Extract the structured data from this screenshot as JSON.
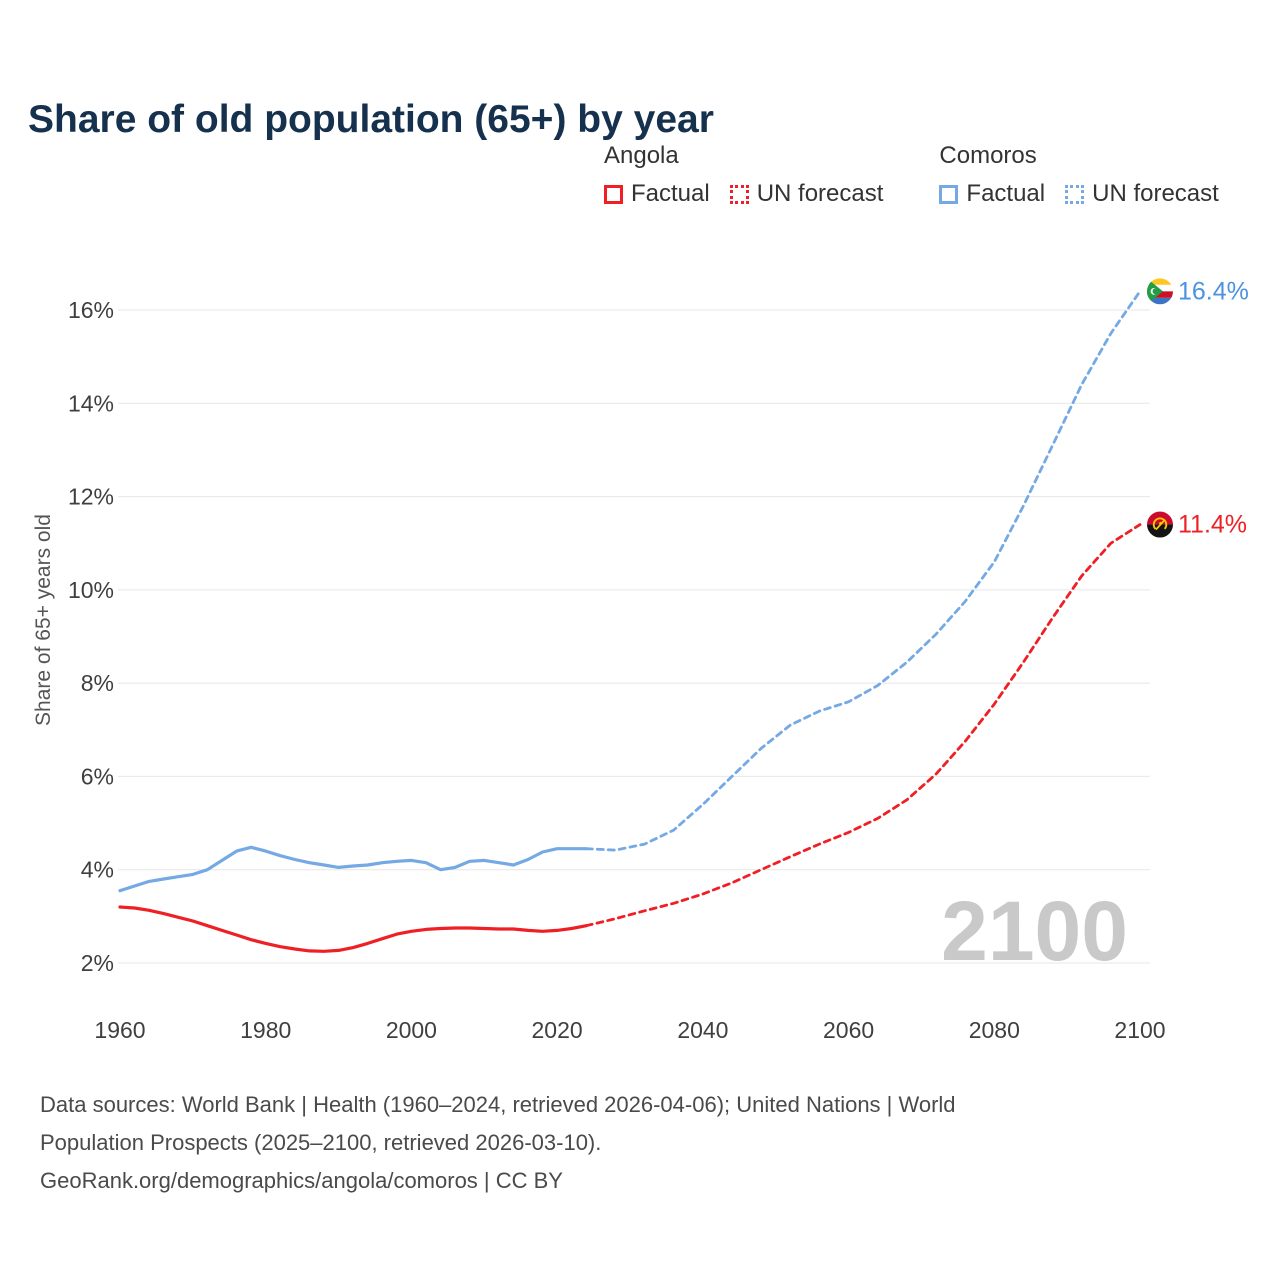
{
  "title": "Share of old population (65+) by year",
  "legend": {
    "groups": [
      {
        "name": "Angola",
        "color": "#ee2025",
        "items": [
          {
            "label": "Factual",
            "style": "solid"
          },
          {
            "label": "UN forecast",
            "style": "dotted"
          }
        ]
      },
      {
        "name": "Comoros",
        "color": "#74a9e4",
        "items": [
          {
            "label": "Factual",
            "style": "solid"
          },
          {
            "label": "UN forecast",
            "style": "dotted"
          }
        ]
      }
    ]
  },
  "footer": {
    "lines": [
      "Data sources: World Bank | Health (1960–2024, retrieved 2026-04-06); United Nations | World",
      "Population Prospects (2025–2100, retrieved 2026-03-10).",
      "GeoRank.org/demographics/angola/comoros | CC BY"
    ]
  },
  "chart_data": {
    "type": "line",
    "title": "Share of old population (65+) by year",
    "xlabel": "",
    "ylabel": "Share of 65+ years old",
    "xlim": [
      1960,
      2100
    ],
    "ylim": [
      2,
      16
    ],
    "xticks": [
      1960,
      1980,
      2000,
      2020,
      2040,
      2060,
      2080,
      2100
    ],
    "yticks": [
      2,
      4,
      6,
      8,
      10,
      12,
      14,
      16
    ],
    "grid": "horizontal",
    "legend_position": "top-right",
    "watermark": "2100",
    "series": [
      {
        "name": "Angola Factual",
        "color": "#ee2025",
        "style": "solid",
        "x": [
          1960,
          1962,
          1964,
          1966,
          1968,
          1970,
          1972,
          1974,
          1976,
          1978,
          1980,
          1982,
          1984,
          1986,
          1988,
          1990,
          1992,
          1994,
          1996,
          1998,
          2000,
          2002,
          2004,
          2006,
          2008,
          2010,
          2012,
          2014,
          2016,
          2018,
          2020,
          2022,
          2024
        ],
        "y": [
          3.2,
          3.18,
          3.13,
          3.06,
          2.98,
          2.9,
          2.8,
          2.7,
          2.6,
          2.5,
          2.42,
          2.35,
          2.3,
          2.26,
          2.25,
          2.27,
          2.33,
          2.42,
          2.52,
          2.62,
          2.68,
          2.72,
          2.74,
          2.75,
          2.75,
          2.74,
          2.73,
          2.73,
          2.7,
          2.68,
          2.7,
          2.74,
          2.8
        ]
      },
      {
        "name": "Angola UN forecast",
        "color": "#ee2025",
        "style": "dashed",
        "x": [
          2024,
          2028,
          2032,
          2036,
          2040,
          2044,
          2048,
          2052,
          2056,
          2060,
          2064,
          2068,
          2072,
          2076,
          2080,
          2084,
          2088,
          2092,
          2096,
          2100
        ],
        "y": [
          2.8,
          2.95,
          3.12,
          3.28,
          3.48,
          3.72,
          4.0,
          4.28,
          4.55,
          4.8,
          5.1,
          5.5,
          6.05,
          6.75,
          7.55,
          8.45,
          9.4,
          10.3,
          11.0,
          11.4
        ]
      },
      {
        "name": "Comoros Factual",
        "color": "#74a9e4",
        "style": "solid",
        "x": [
          1960,
          1962,
          1964,
          1966,
          1968,
          1970,
          1972,
          1974,
          1976,
          1978,
          1980,
          1982,
          1984,
          1986,
          1988,
          1990,
          1992,
          1994,
          1996,
          1998,
          2000,
          2002,
          2004,
          2006,
          2008,
          2010,
          2012,
          2014,
          2016,
          2018,
          2020,
          2022,
          2024
        ],
        "y": [
          3.55,
          3.65,
          3.75,
          3.8,
          3.85,
          3.9,
          4.0,
          4.2,
          4.4,
          4.48,
          4.4,
          4.3,
          4.22,
          4.15,
          4.1,
          4.05,
          4.08,
          4.1,
          4.15,
          4.18,
          4.2,
          4.15,
          4.0,
          4.05,
          4.18,
          4.2,
          4.15,
          4.1,
          4.22,
          4.38,
          4.45,
          4.45,
          4.45
        ]
      },
      {
        "name": "Comoros UN forecast",
        "color": "#74a9e4",
        "style": "dashed",
        "x": [
          2024,
          2028,
          2032,
          2036,
          2040,
          2044,
          2048,
          2052,
          2056,
          2060,
          2064,
          2068,
          2072,
          2076,
          2080,
          2084,
          2088,
          2092,
          2096,
          2100
        ],
        "y": [
          4.45,
          4.42,
          4.55,
          4.85,
          5.4,
          6.0,
          6.6,
          7.1,
          7.4,
          7.6,
          7.95,
          8.45,
          9.05,
          9.75,
          10.6,
          11.8,
          13.1,
          14.4,
          15.5,
          16.4
        ]
      }
    ],
    "end_labels": [
      {
        "text": "16.4%",
        "color": "#4b93de",
        "flag": "comoros",
        "x": 2100,
        "y": 16.4
      },
      {
        "text": "11.4%",
        "color": "#ee2025",
        "flag": "angola",
        "x": 2100,
        "y": 11.4
      }
    ]
  }
}
